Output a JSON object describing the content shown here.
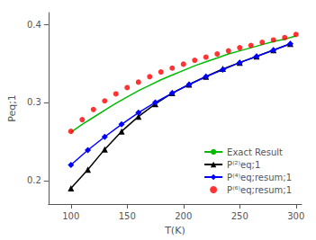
{
  "chart_data": {
    "type": "line",
    "title": "",
    "x_label": "T(K)",
    "y_label": "Peq;1",
    "xlim": [
      80,
      305
    ],
    "ylim": [
      0.17,
      0.415
    ],
    "xticks": [
      100,
      150,
      200,
      250,
      300
    ],
    "yticks": [
      0.2,
      0.3,
      0.4
    ],
    "grid": false,
    "legend": "lower right",
    "series": [
      {
        "name": "Exact Result",
        "type": "line",
        "color": "#00bb00",
        "marker": "none",
        "line_style": "solid",
        "x": [
          100,
          110,
          120,
          130,
          140,
          150,
          160,
          170,
          180,
          190,
          200,
          210,
          220,
          230,
          240,
          250,
          260,
          270,
          280,
          290,
          300
        ],
        "values": [
          0.262,
          0.272,
          0.281,
          0.29,
          0.299,
          0.307,
          0.315,
          0.322,
          0.329,
          0.335,
          0.341,
          0.347,
          0.352,
          0.357,
          0.362,
          0.366,
          0.37,
          0.374,
          0.378,
          0.381,
          0.385
        ]
      },
      {
        "name": "P⁽²⁾eq;1",
        "type": "line",
        "color": "#000000",
        "marker": "triangle",
        "line_style": "solid",
        "x": [
          100,
          115,
          130,
          145,
          160,
          175,
          190,
          205,
          220,
          235,
          250,
          265,
          280,
          295
        ],
        "values": [
          0.19,
          0.214,
          0.24,
          0.263,
          0.282,
          0.298,
          0.312,
          0.323,
          0.333,
          0.343,
          0.351,
          0.359,
          0.367,
          0.375
        ]
      },
      {
        "name": "P⁽⁴⁾eq;resum;1",
        "type": "line",
        "color": "#0000ff",
        "marker": "diamond",
        "line_style": "solid",
        "x": [
          100,
          115,
          130,
          145,
          160,
          175,
          190,
          205,
          220,
          235,
          250,
          265,
          280,
          295
        ],
        "values": [
          0.22,
          0.239,
          0.256,
          0.272,
          0.287,
          0.3,
          0.312,
          0.323,
          0.333,
          0.342,
          0.351,
          0.359,
          0.367,
          0.375
        ]
      },
      {
        "name": "P⁽⁶⁾eq;resum;1",
        "type": "scatter",
        "color": "#ff0000",
        "marker": "circle",
        "line_style": "none",
        "x": [
          100,
          110,
          120,
          130,
          140,
          150,
          160,
          170,
          180,
          190,
          200,
          210,
          220,
          230,
          240,
          250,
          260,
          270,
          280,
          290,
          300
        ],
        "values": [
          0.263,
          0.278,
          0.291,
          0.302,
          0.311,
          0.319,
          0.326,
          0.333,
          0.339,
          0.344,
          0.349,
          0.354,
          0.358,
          0.362,
          0.366,
          0.37,
          0.373,
          0.377,
          0.38,
          0.383,
          0.387
        ]
      }
    ]
  }
}
